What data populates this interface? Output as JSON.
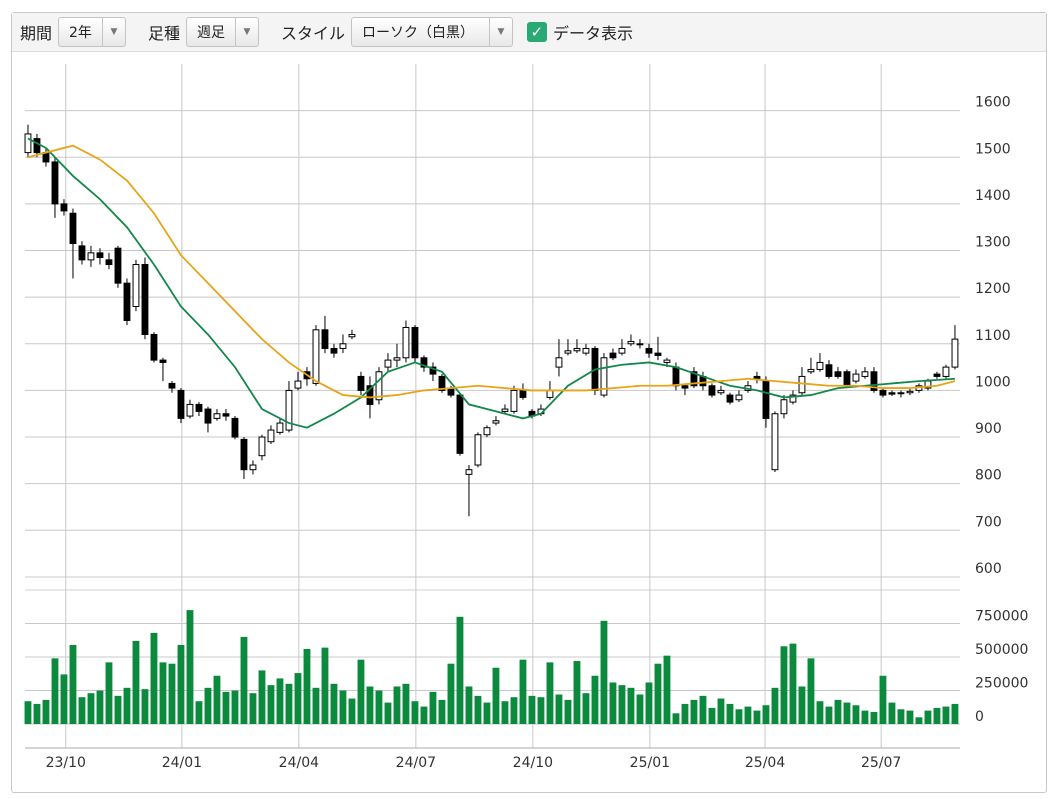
{
  "controls": {
    "period_label": "期間",
    "period_value": "2年",
    "bar_label": "足種",
    "bar_value": "週足",
    "style_label": "スタイル",
    "style_value": "ローソク（白黒）",
    "data_label": "データ表示"
  },
  "chart_data": {
    "type": "candlestick",
    "open": [
      1510,
      1540,
      1510,
      1490,
      1400,
      1380,
      1310,
      1280,
      1295,
      1280,
      1305,
      1230,
      1180,
      1270,
      1120,
      1065,
      1015,
      1000,
      945,
      970,
      960,
      940,
      950,
      940,
      895,
      830,
      860,
      890,
      910,
      915,
      1005,
      1040,
      1015,
      1130,
      1090,
      1090,
      1115,
      1030,
      1010,
      980,
      1050,
      1065,
      1070,
      1135,
      1070,
      1050,
      1030,
      1005,
      990,
      820,
      840,
      905,
      930,
      955,
      955,
      1000,
      955,
      950,
      985,
      1050,
      1080,
      1085,
      1080,
      1090,
      990,
      1080,
      1080,
      1100,
      1100,
      1090,
      1080,
      1060,
      1050,
      1010,
      1040,
      1030,
      1010,
      995,
      990,
      980,
      1000,
      1030,
      1020,
      830,
      950,
      975,
      995,
      1040,
      1045,
      1055,
      1040,
      1040,
      1020,
      1030,
      1040,
      1000,
      995,
      995,
      995,
      1000,
      1005,
      1035,
      1030,
      1050
    ],
    "high": [
      1570,
      1550,
      1520,
      1500,
      1410,
      1390,
      1320,
      1310,
      1305,
      1295,
      1310,
      1240,
      1280,
      1285,
      1125,
      1070,
      1020,
      1005,
      980,
      975,
      965,
      960,
      960,
      945,
      900,
      850,
      905,
      925,
      940,
      1020,
      1040,
      1050,
      1140,
      1160,
      1100,
      1120,
      1130,
      1040,
      1030,
      1050,
      1080,
      1100,
      1150,
      1140,
      1075,
      1060,
      1035,
      1010,
      995,
      840,
      910,
      925,
      945,
      970,
      1010,
      1015,
      960,
      970,
      1020,
      1110,
      1110,
      1110,
      1100,
      1095,
      1080,
      1090,
      1110,
      1120,
      1110,
      1100,
      1115,
      1070,
      1060,
      1015,
      1050,
      1040,
      1015,
      1010,
      995,
      1000,
      1020,
      1040,
      1030,
      955,
      990,
      1000,
      1050,
      1070,
      1080,
      1065,
      1050,
      1045,
      1045,
      1050,
      1050,
      1005,
      1000,
      1000,
      1005,
      1015,
      1025,
      1040,
      1055,
      1140
    ],
    "low": [
      1500,
      1500,
      1480,
      1370,
      1375,
      1240,
      1270,
      1265,
      1270,
      1260,
      1220,
      1140,
      1170,
      1110,
      1060,
      1020,
      995,
      930,
      940,
      945,
      910,
      935,
      935,
      895,
      810,
      820,
      850,
      885,
      905,
      910,
      1000,
      1010,
      1010,
      1080,
      1070,
      1080,
      1110,
      990,
      940,
      970,
      1040,
      1050,
      1060,
      1060,
      1040,
      1020,
      995,
      985,
      860,
      730,
      835,
      900,
      925,
      950,
      950,
      980,
      940,
      945,
      980,
      1030,
      1075,
      1080,
      1075,
      990,
      985,
      1065,
      1075,
      1095,
      1090,
      1070,
      1065,
      1050,
      1000,
      990,
      1005,
      1000,
      985,
      990,
      970,
      975,
      995,
      1015,
      920,
      825,
      940,
      970,
      990,
      1035,
      1040,
      1025,
      1025,
      1005,
      1015,
      1025,
      995,
      985,
      988,
      985,
      990,
      995,
      1000,
      1025,
      1025,
      1045
    ],
    "close": [
      1550,
      1510,
      1490,
      1400,
      1385,
      1315,
      1280,
      1295,
      1285,
      1270,
      1230,
      1150,
      1270,
      1120,
      1065,
      1060,
      1005,
      940,
      970,
      955,
      930,
      950,
      945,
      900,
      830,
      840,
      900,
      915,
      930,
      1000,
      1020,
      1025,
      1130,
      1090,
      1080,
      1100,
      1120,
      1000,
      970,
      1040,
      1065,
      1070,
      1135,
      1070,
      1050,
      1035,
      1000,
      990,
      865,
      830,
      905,
      920,
      935,
      960,
      1000,
      985,
      945,
      960,
      1000,
      1070,
      1085,
      1090,
      1090,
      1000,
      1070,
      1070,
      1090,
      1105,
      1100,
      1080,
      1075,
      1065,
      1010,
      1005,
      1010,
      1010,
      990,
      1000,
      975,
      990,
      1010,
      1025,
      940,
      950,
      980,
      990,
      1030,
      1045,
      1060,
      1030,
      1030,
      1010,
      1035,
      1040,
      1000,
      990,
      992,
      993,
      998,
      1010,
      1020,
      1030,
      1050,
      1110
    ],
    "volume": [
      170000,
      150000,
      180000,
      490000,
      370000,
      590000,
      200000,
      230000,
      250000,
      460000,
      210000,
      270000,
      620000,
      260000,
      680000,
      460000,
      450000,
      590000,
      850000,
      170000,
      270000,
      360000,
      240000,
      250000,
      650000,
      230000,
      400000,
      290000,
      340000,
      300000,
      380000,
      560000,
      270000,
      570000,
      300000,
      250000,
      190000,
      480000,
      280000,
      250000,
      160000,
      280000,
      300000,
      170000,
      130000,
      240000,
      180000,
      450000,
      800000,
      280000,
      210000,
      160000,
      420000,
      170000,
      200000,
      480000,
      210000,
      200000,
      460000,
      220000,
      180000,
      470000,
      230000,
      360000,
      770000,
      310000,
      290000,
      270000,
      220000,
      310000,
      450000,
      510000,
      80000,
      150000,
      180000,
      210000,
      120000,
      190000,
      150000,
      110000,
      130000,
      100000,
      140000,
      270000,
      580000,
      600000,
      280000,
      490000,
      170000,
      130000,
      180000,
      160000,
      140000,
      100000,
      90000,
      360000,
      160000,
      110000,
      100000,
      50000,
      100000,
      120000,
      130000,
      150000
    ],
    "up_color": "#ffffff",
    "down_color": "#000000",
    "volume_color": "#0b8a3e",
    "ma": [
      {
        "color": "#11884a",
        "x": [
          0,
          2,
          5,
          8,
          11,
          14,
          17,
          20,
          23,
          26,
          29,
          31,
          34,
          37,
          40,
          43,
          46,
          49,
          52,
          55,
          57,
          60,
          63,
          66,
          69,
          72,
          75,
          78,
          81,
          84,
          87,
          90,
          93,
          96,
          99,
          103
        ],
        "values": [
          1540,
          1520,
          1460,
          1410,
          1350,
          1270,
          1180,
          1120,
          1050,
          960,
          930,
          920,
          950,
          985,
          1040,
          1060,
          1040,
          970,
          955,
          940,
          950,
          1010,
          1045,
          1055,
          1060,
          1050,
          1030,
          1010,
          1000,
          985,
          990,
          1005,
          1010,
          1015,
          1020,
          1025
        ]
      },
      {
        "color": "#e8a317",
        "x": [
          0,
          5,
          8,
          11,
          14,
          17,
          20,
          23,
          26,
          29,
          32,
          35,
          38,
          41,
          44,
          47,
          50,
          53,
          56,
          59,
          62,
          65,
          68,
          71,
          74,
          77,
          80,
          83,
          86,
          89,
          92,
          95,
          98,
          101,
          103
        ],
        "values": [
          1500,
          1525,
          1495,
          1450,
          1380,
          1290,
          1230,
          1170,
          1110,
          1060,
          1020,
          990,
          985,
          990,
          1000,
          1005,
          1010,
          1005,
          1000,
          1000,
          1000,
          1005,
          1010,
          1010,
          1015,
          1020,
          1025,
          1020,
          1015,
          1010,
          1010,
          1005,
          1005,
          1010,
          1020
        ]
      }
    ],
    "xlim": [
      -0.33,
      103.56
    ],
    "xticks": [
      {
        "value": 4.2,
        "label": "23/10"
      },
      {
        "value": 17.1,
        "label": "24/01"
      },
      {
        "value": 30.1,
        "label": "24/04"
      },
      {
        "value": 43.1,
        "label": "24/07"
      },
      {
        "value": 56.1,
        "label": "24/10"
      },
      {
        "value": 69.1,
        "label": "25/01"
      },
      {
        "value": 81.9,
        "label": "25/04"
      },
      {
        "value": 94.8,
        "label": "25/07"
      }
    ],
    "ylim": [
      572,
      1700
    ],
    "yticks": [
      600,
      700,
      800,
      900,
      1000,
      1100,
      1200,
      1300,
      1400,
      1500,
      1600
    ],
    "vlim": [
      -179000,
      1000000
    ],
    "vticks": [
      0,
      250000,
      500000,
      750000
    ],
    "grid": true
  }
}
